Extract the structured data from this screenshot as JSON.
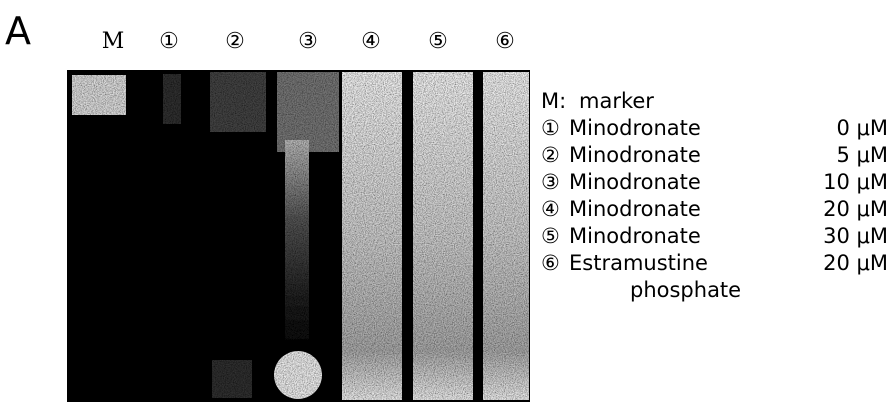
{
  "panel_label": "A",
  "lane_labels": [
    "M",
    "①",
    "②",
    "③",
    "④",
    "⑤",
    "⑥"
  ],
  "legend": [
    {
      "key": "M:",
      "name": "marker"
    },
    {
      "key": "①",
      "name": "Minodronate",
      "dose": "0 μM"
    },
    {
      "key": "②",
      "name": "Minodronate",
      "dose": "5 μM"
    },
    {
      "key": "③",
      "name": "Minodronate",
      "dose": "10 μM"
    },
    {
      "key": "④",
      "name": "Minodronate",
      "dose": "20 μM"
    },
    {
      "key": "⑤",
      "name": "Minodronate",
      "dose": "30 μM"
    },
    {
      "key": "⑥",
      "name": "Estramustine",
      "dose": "20 μM",
      "continuation": "phosphate"
    }
  ]
}
